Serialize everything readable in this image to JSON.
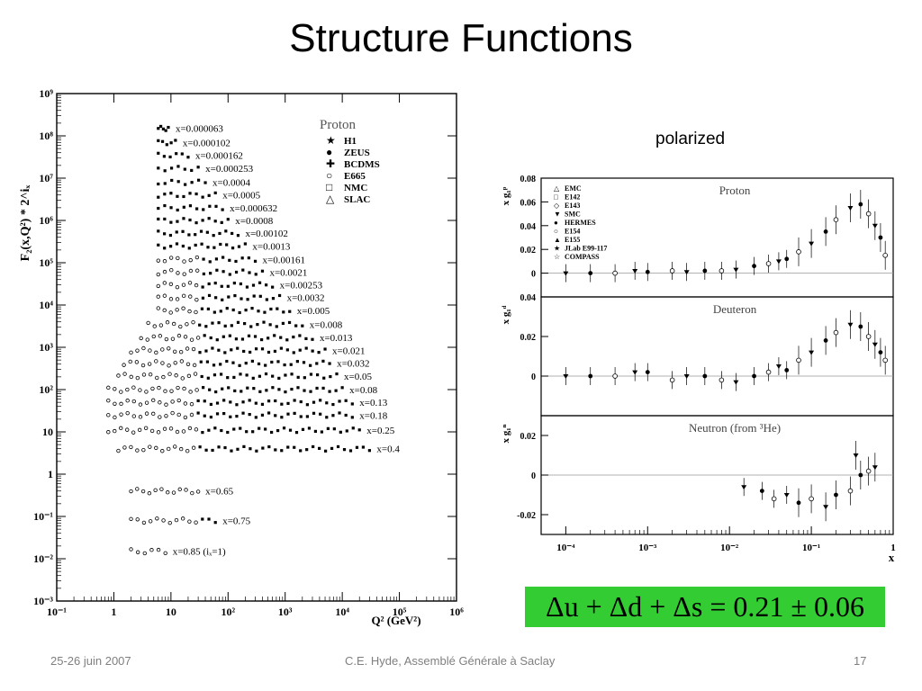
{
  "slide": {
    "title": "Structure Functions",
    "subtitle": "polarized",
    "formula": "Δu + Δd + Δs = 0.21 ± 0.06",
    "footer_left": "25-26 juin 2007",
    "footer_center": "C.E. Hyde, Assemblé Générale à Saclay",
    "footer_right": "17"
  },
  "chart_data": [
    {
      "type": "scatter",
      "title": "Proton",
      "xlabel": "Q² (GeV²)",
      "ylabel": "F₂(x,Q²) * 2^iₓ",
      "xscale": "log",
      "yscale": "log",
      "xlim": [
        0.1,
        1000000
      ],
      "ylim": [
        0.001,
        1000000000
      ],
      "x_ticks": [
        "10⁻¹",
        "1",
        "10",
        "10²",
        "10³",
        "10⁴",
        "10⁵",
        "10⁶"
      ],
      "y_ticks": [
        "10⁻³",
        "10⁻²",
        "10⁻¹",
        "1",
        "10",
        "10²",
        "10³",
        "10⁴",
        "10⁵",
        "10⁶",
        "10⁷",
        "10⁸",
        "10⁹"
      ],
      "legend": {
        "position": "top-right",
        "entries": [
          "H1",
          "ZEUS",
          "BCDMS",
          "E665",
          "NMC",
          "SLAC"
        ]
      },
      "series_labels": [
        "x=0.000063",
        "x=0.000102",
        "x=0.000162",
        "x=0.000253",
        "x=0.0004",
        "x=0.0005",
        "x=0.000632",
        "x=0.0008",
        "x=0.00102",
        "x=0.0013",
        "x=0.00161",
        "x=0.0021",
        "x=0.00253",
        "x=0.0032",
        "x=0.005",
        "x=0.008",
        "x=0.013",
        "x=0.021",
        "x=0.032",
        "x=0.05",
        "x=0.08",
        "x=0.13",
        "x=0.18",
        "x=0.25",
        "x=0.4",
        "x=0.65",
        "x=0.75",
        "x=0.85  (iₓ=1)"
      ],
      "series": [
        {
          "name": "x=0.000063",
          "q2_range": [
            6,
            9
          ],
          "value": 150000000
        },
        {
          "name": "x=0.000102",
          "q2_range": [
            6,
            12
          ],
          "value": 70000000
        },
        {
          "name": "x=0.000162",
          "q2_range": [
            6,
            20
          ],
          "value": 35000000
        },
        {
          "name": "x=0.000253",
          "q2_range": [
            6,
            30
          ],
          "value": 17000000
        },
        {
          "name": "x=0.0004",
          "q2_range": [
            6,
            40
          ],
          "value": 8000000
        },
        {
          "name": "x=0.0005",
          "q2_range": [
            6,
            60
          ],
          "value": 4000000
        },
        {
          "name": "x=0.000632",
          "q2_range": [
            6,
            80
          ],
          "value": 2000000
        },
        {
          "name": "x=0.0008",
          "q2_range": [
            6,
            100
          ],
          "value": 1000000
        },
        {
          "name": "x=0.00102",
          "q2_range": [
            6,
            150
          ],
          "value": 500000
        },
        {
          "name": "x=0.0013",
          "q2_range": [
            6,
            200
          ],
          "value": 250000
        },
        {
          "name": "x=0.00161",
          "q2_range": [
            6,
            300
          ],
          "value": 120000
        },
        {
          "name": "x=0.0021",
          "q2_range": [
            6,
            400
          ],
          "value": 60000
        },
        {
          "name": "x=0.00253",
          "q2_range": [
            6,
            600
          ],
          "value": 30000
        },
        {
          "name": "x=0.0032",
          "q2_range": [
            6,
            800
          ],
          "value": 15000
        },
        {
          "name": "x=0.005",
          "q2_range": [
            6,
            1200
          ],
          "value": 7500
        },
        {
          "name": "x=0.008",
          "q2_range": [
            4,
            2000
          ],
          "value": 3500
        },
        {
          "name": "x=0.013",
          "q2_range": [
            3,
            3000
          ],
          "value": 1700
        },
        {
          "name": "x=0.021",
          "q2_range": [
            2,
            5000
          ],
          "value": 850
        },
        {
          "name": "x=0.032",
          "q2_range": [
            1.5,
            6000
          ],
          "value": 420
        },
        {
          "name": "x=0.05",
          "q2_range": [
            1.2,
            8000
          ],
          "value": 210
        },
        {
          "name": "x=0.08",
          "q2_range": [
            0.8,
            10000
          ],
          "value": 100
        },
        {
          "name": "x=0.13",
          "q2_range": [
            0.8,
            15000
          ],
          "value": 50
        },
        {
          "name": "x=0.18",
          "q2_range": [
            0.8,
            15000
          ],
          "value": 25
        },
        {
          "name": "x=0.25",
          "q2_range": [
            0.8,
            20000
          ],
          "value": 11
        },
        {
          "name": "x=0.4",
          "q2_range": [
            1.2,
            30000
          ],
          "value": 4
        },
        {
          "name": "x=0.65",
          "q2_range": [
            2,
            30
          ],
          "value": 0.4
        },
        {
          "name": "x=0.75",
          "q2_range": [
            2,
            60
          ],
          "value": 0.08
        },
        {
          "name": "x=0.85  (iₓ=1)",
          "q2_range": [
            2,
            8
          ],
          "value": 0.015
        }
      ]
    },
    {
      "type": "scatter",
      "title": "polarized",
      "xlabel": "x",
      "xscale": "log",
      "xlim": [
        5e-05,
        1
      ],
      "x_ticks": [
        "10⁻⁴",
        "10⁻³",
        "10⁻²",
        "10⁻¹",
        "1"
      ],
      "legend": {
        "position": "top-left",
        "entries": [
          "EMC",
          "E142",
          "E143",
          "SMC",
          "HERMES",
          "E154",
          "E155",
          "JLab E99-117",
          "COMPASS"
        ]
      },
      "panels": [
        {
          "name": "Proton",
          "ylabel": "x g₁ᵖ",
          "ylim": [
            -0.02,
            0.08
          ],
          "y_ticks": [
            "0",
            "0.02",
            "0.04",
            "0.06",
            "0.08"
          ],
          "points": [
            [
              0.0001,
              0.0
            ],
            [
              0.0002,
              0.0
            ],
            [
              0.0004,
              0.0
            ],
            [
              0.0007,
              0.002
            ],
            [
              0.001,
              0.001
            ],
            [
              0.002,
              0.002
            ],
            [
              0.003,
              0.001
            ],
            [
              0.005,
              0.002
            ],
            [
              0.008,
              0.002
            ],
            [
              0.012,
              0.003
            ],
            [
              0.02,
              0.006
            ],
            [
              0.03,
              0.008
            ],
            [
              0.04,
              0.01
            ],
            [
              0.05,
              0.012
            ],
            [
              0.07,
              0.018
            ],
            [
              0.1,
              0.025
            ],
            [
              0.15,
              0.035
            ],
            [
              0.2,
              0.045
            ],
            [
              0.3,
              0.055
            ],
            [
              0.4,
              0.058
            ],
            [
              0.5,
              0.05
            ],
            [
              0.6,
              0.04
            ],
            [
              0.7,
              0.03
            ],
            [
              0.8,
              0.015
            ]
          ]
        },
        {
          "name": "Deuteron",
          "ylabel": "x g₁ᵈ",
          "ylim": [
            -0.02,
            0.04
          ],
          "y_ticks": [
            "0",
            "0.02",
            "0.04"
          ],
          "points": [
            [
              0.0001,
              0.0
            ],
            [
              0.0002,
              0.0
            ],
            [
              0.0004,
              0.0
            ],
            [
              0.0007,
              0.002
            ],
            [
              0.001,
              0.002
            ],
            [
              0.002,
              -0.002
            ],
            [
              0.003,
              0.0
            ],
            [
              0.005,
              0.0
            ],
            [
              0.008,
              -0.002
            ],
            [
              0.012,
              -0.003
            ],
            [
              0.02,
              0.0
            ],
            [
              0.03,
              0.002
            ],
            [
              0.04,
              0.005
            ],
            [
              0.05,
              0.003
            ],
            [
              0.07,
              0.008
            ],
            [
              0.1,
              0.012
            ],
            [
              0.15,
              0.018
            ],
            [
              0.2,
              0.022
            ],
            [
              0.3,
              0.026
            ],
            [
              0.4,
              0.025
            ],
            [
              0.5,
              0.02
            ],
            [
              0.6,
              0.016
            ],
            [
              0.7,
              0.012
            ],
            [
              0.8,
              0.008
            ]
          ]
        },
        {
          "name": "Neutron (from ³He)",
          "ylabel": "x g₁ⁿ",
          "ylim": [
            -0.03,
            0.03
          ],
          "y_ticks": [
            "-0.02",
            "0",
            "0.02"
          ],
          "points": [
            [
              0.015,
              -0.006
            ],
            [
              0.025,
              -0.008
            ],
            [
              0.035,
              -0.012
            ],
            [
              0.05,
              -0.01
            ],
            [
              0.07,
              -0.014
            ],
            [
              0.1,
              -0.012
            ],
            [
              0.15,
              -0.016
            ],
            [
              0.2,
              -0.01
            ],
            [
              0.3,
              -0.008
            ],
            [
              0.35,
              0.01
            ],
            [
              0.4,
              0.0
            ],
            [
              0.5,
              0.002
            ],
            [
              0.6,
              0.004
            ]
          ]
        }
      ]
    }
  ]
}
